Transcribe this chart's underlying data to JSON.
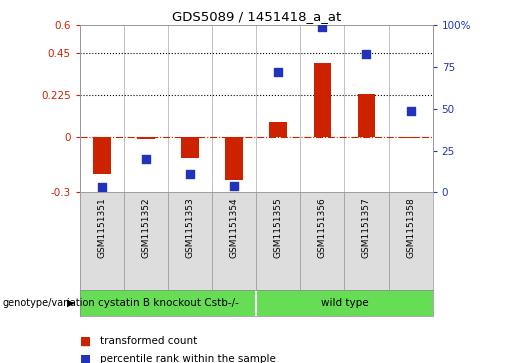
{
  "title": "GDS5089 / 1451418_a_at",
  "samples": [
    "GSM1151351",
    "GSM1151352",
    "GSM1151353",
    "GSM1151354",
    "GSM1151355",
    "GSM1151356",
    "GSM1151357",
    "GSM1151358"
  ],
  "transformed_count": [
    -0.2,
    -0.01,
    -0.115,
    -0.235,
    0.08,
    0.395,
    0.23,
    -0.005
  ],
  "percentile_rank": [
    3,
    20,
    11,
    4,
    72,
    99,
    83,
    49
  ],
  "ylim_left": [
    -0.3,
    0.6
  ],
  "ylim_right": [
    0,
    100
  ],
  "yticks_left": [
    -0.3,
    0.0,
    0.225,
    0.45,
    0.6
  ],
  "ytick_labels_left": [
    "-0.3",
    "0",
    "0.225",
    "0.45",
    "0.6"
  ],
  "yticks_right": [
    0,
    25,
    50,
    75,
    100
  ],
  "ytick_labels_right": [
    "0",
    "25",
    "50",
    "75",
    "100%"
  ],
  "hlines": [
    0.225,
    0.45
  ],
  "bar_color": "#cc2200",
  "dot_color": "#2233bb",
  "group1_label": "cystatin B knockout Cstb-/-",
  "group1_count": 4,
  "group2_label": "wild type",
  "group2_count": 4,
  "group_color": "#66dd55",
  "annotation_label": "genotype/variation",
  "legend1_label": "transformed count",
  "legend2_label": "percentile rank within the sample",
  "bg_color": "#ffffff",
  "zero_line_color": "#cc2200",
  "bar_width": 0.4,
  "dot_size": 40
}
